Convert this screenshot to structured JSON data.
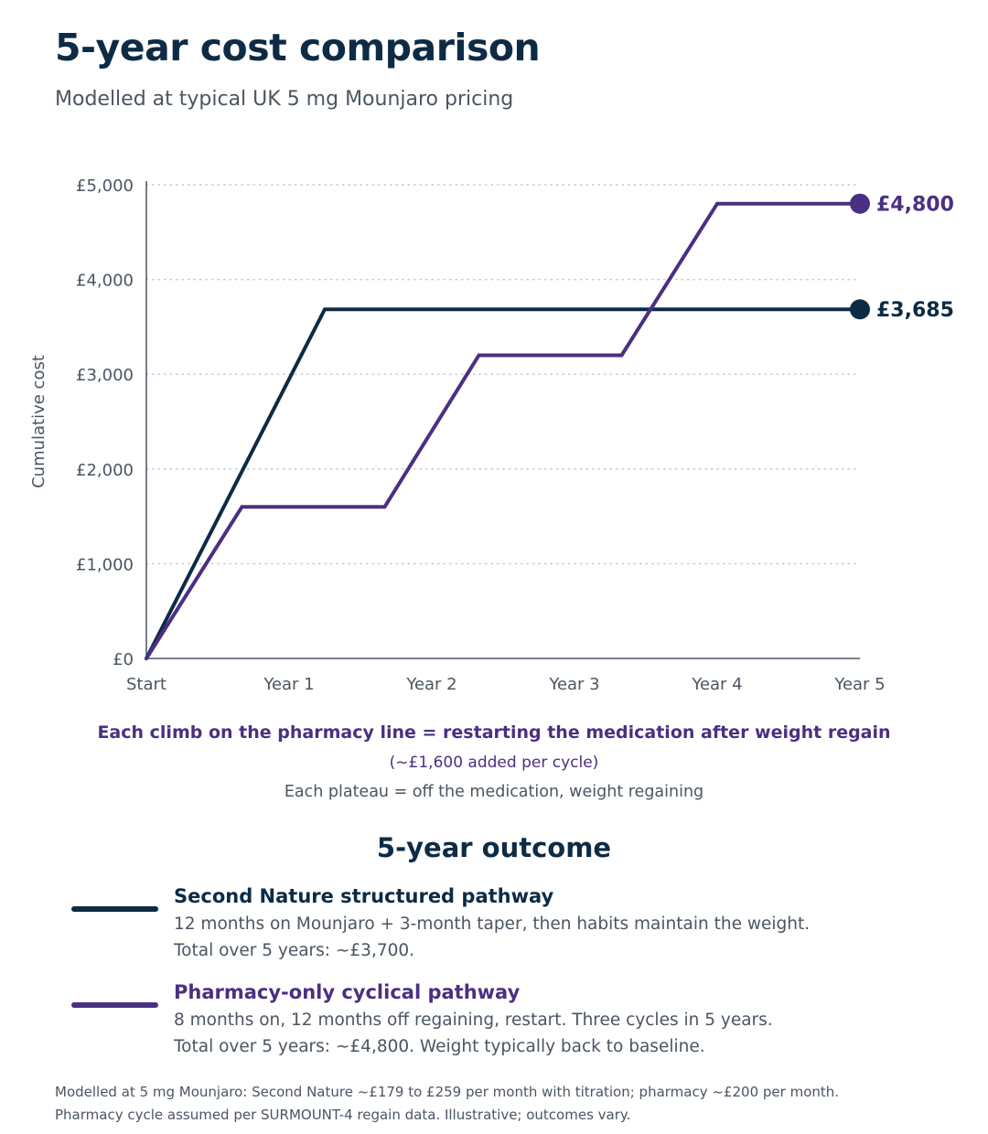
{
  "header": {
    "title": "5-year cost comparison",
    "subtitle": "Modelled at typical UK 5 mg Mounjaro pricing"
  },
  "chart_data": {
    "type": "line",
    "ylabel": "Cumulative cost",
    "xlabel": "",
    "x_ticks": [
      {
        "value": 0,
        "label": "Start"
      },
      {
        "value": 1,
        "label": "Year 1"
      },
      {
        "value": 2,
        "label": "Year 2"
      },
      {
        "value": 3,
        "label": "Year 3"
      },
      {
        "value": 4,
        "label": "Year 4"
      },
      {
        "value": 5,
        "label": "Year 5"
      }
    ],
    "y_ticks": [
      {
        "value": 0,
        "label": "£0"
      },
      {
        "value": 1000,
        "label": "£1,000"
      },
      {
        "value": 2000,
        "label": "£2,000"
      },
      {
        "value": 3000,
        "label": "£3,000"
      },
      {
        "value": 4000,
        "label": "£4,000"
      },
      {
        "value": 5000,
        "label": "£5,000"
      }
    ],
    "xlim": [
      0,
      5
    ],
    "ylim": [
      0,
      5000
    ],
    "grid": "horizontal dotted",
    "series": [
      {
        "name": "Second Nature structured pathway",
        "color": "#0d2b45",
        "points": [
          [
            0,
            0
          ],
          [
            1.25,
            3685
          ],
          [
            5,
            3685
          ]
        ],
        "end_label": "£3,685"
      },
      {
        "name": "Pharmacy-only cyclical pathway",
        "color": "#4b2f82",
        "points": [
          [
            0,
            0
          ],
          [
            0.67,
            1600
          ],
          [
            1.67,
            1600
          ],
          [
            2.33,
            3200
          ],
          [
            3.33,
            3200
          ],
          [
            4.0,
            4800
          ],
          [
            5,
            4800
          ]
        ],
        "end_label": "£4,800"
      }
    ]
  },
  "notes": {
    "climb": "Each climb on the pharmacy line = restarting the medication after weight regain",
    "climb_sub": "(~£1,600 added per cycle)",
    "plateau": "Each plateau = off the medication, weight regaining"
  },
  "outcome": {
    "heading": "5-year outcome",
    "items": [
      {
        "name": "Second Nature structured pathway",
        "color": "#0d2b45",
        "line1": "12 months on Mounjaro + 3-month taper, then habits maintain the weight.",
        "line2": "Total over 5 years: ~£3,700."
      },
      {
        "name": "Pharmacy-only cyclical pathway",
        "color": "#4b2f82",
        "line1": "8 months on, 12 months off regaining, restart. Three cycles in 5 years.",
        "line2": "Total over 5 years: ~£4,800. Weight typically back to baseline."
      }
    ]
  },
  "footnote": {
    "line1": "Modelled at 5 mg Mounjaro: Second Nature ~£179 to £259 per month with titration; pharmacy ~£200 per month.",
    "line2": "Pharmacy cycle assumed per SURMOUNT-4 regain data. Illustrative; outcomes vary."
  }
}
